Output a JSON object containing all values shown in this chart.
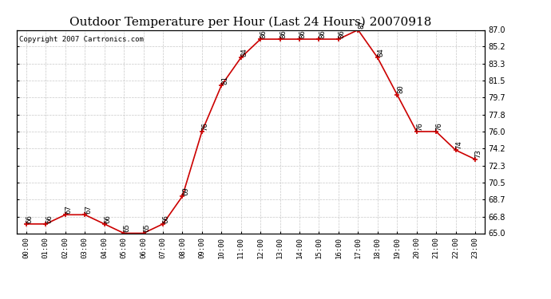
{
  "title": "Outdoor Temperature per Hour (Last 24 Hours) 20070918",
  "copyright": "Copyright 2007 Cartronics.com",
  "hours": [
    "00:00",
    "01:00",
    "02:00",
    "03:00",
    "04:00",
    "05:00",
    "06:00",
    "07:00",
    "08:00",
    "09:00",
    "10:00",
    "11:00",
    "12:00",
    "13:00",
    "14:00",
    "15:00",
    "16:00",
    "17:00",
    "18:00",
    "19:00",
    "20:00",
    "21:00",
    "22:00",
    "23:00"
  ],
  "temps": [
    66,
    66,
    67,
    67,
    66,
    65,
    65,
    66,
    69,
    76,
    81,
    84,
    86,
    86,
    86,
    86,
    86,
    87,
    84,
    80,
    76,
    76,
    74,
    73
  ],
  "line_color": "#cc0000",
  "marker_color": "#cc0000",
  "bg_color": "#ffffff",
  "grid_color": "#c8c8c8",
  "ylim_min": 65.0,
  "ylim_max": 87.0,
  "yticks": [
    65.0,
    66.8,
    68.7,
    70.5,
    72.3,
    74.2,
    76.0,
    77.8,
    79.7,
    81.5,
    83.3,
    85.2,
    87.0
  ],
  "title_fontsize": 11,
  "copyright_fontsize": 6.5,
  "label_fontsize": 6.5,
  "tick_fontsize": 7,
  "xtick_fontsize": 6.5
}
